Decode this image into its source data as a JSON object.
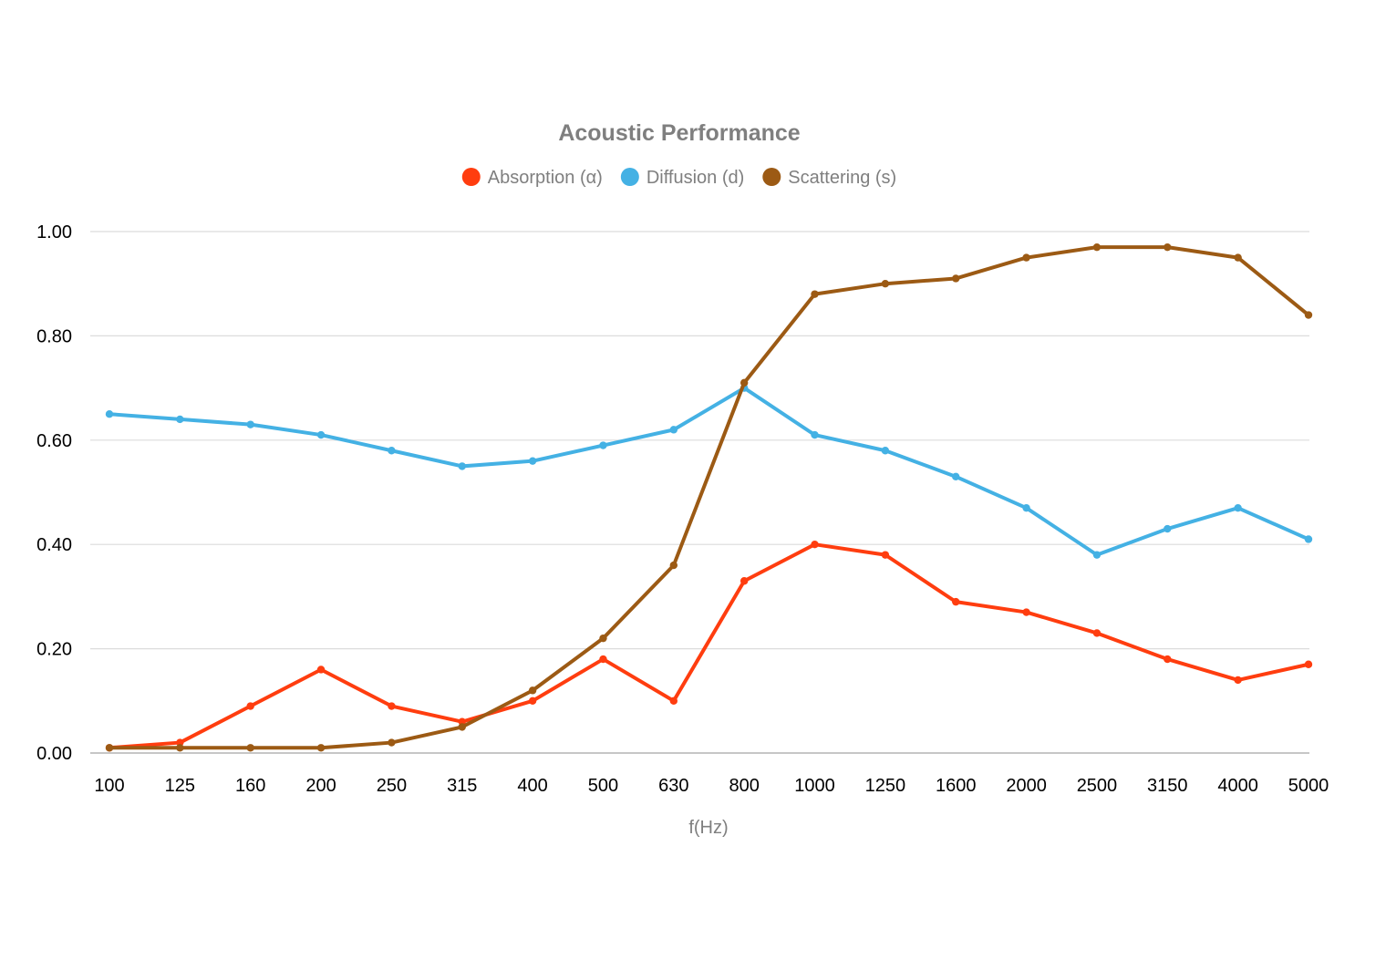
{
  "chart_data": {
    "type": "line",
    "title": "Acoustic Performance",
    "xlabel": "f(Hz)",
    "ylabel": "",
    "categories": [
      "100",
      "125",
      "160",
      "200",
      "250",
      "315",
      "400",
      "500",
      "630",
      "800",
      "1000",
      "1250",
      "1600",
      "2000",
      "2500",
      "3150",
      "4000",
      "5000"
    ],
    "ylim": [
      0,
      1
    ],
    "yticks": [
      "0.00",
      "0.20",
      "0.40",
      "0.60",
      "0.80",
      "1.00"
    ],
    "ytick_values": [
      0,
      0.2,
      0.4,
      0.6,
      0.8,
      1.0
    ],
    "grid": true,
    "legend_position": "top-center",
    "series": [
      {
        "name": "Absorption (α)",
        "color": "#ff3d0f",
        "values": [
          0.01,
          0.02,
          0.09,
          0.16,
          0.09,
          0.06,
          0.1,
          0.18,
          0.1,
          0.33,
          0.4,
          0.38,
          0.29,
          0.27,
          0.23,
          0.18,
          0.14,
          0.17
        ]
      },
      {
        "name": "Diffusion (d)",
        "color": "#44b1e4",
        "values": [
          0.65,
          0.64,
          0.63,
          0.61,
          0.58,
          0.55,
          0.56,
          0.59,
          0.62,
          0.7,
          0.61,
          0.58,
          0.53,
          0.47,
          0.38,
          0.43,
          0.47,
          0.41
        ]
      },
      {
        "name": "Scattering (s)",
        "color": "#9c5a14",
        "values": [
          0.01,
          0.01,
          0.01,
          0.01,
          0.02,
          0.05,
          0.12,
          0.22,
          0.36,
          0.71,
          0.88,
          0.9,
          0.91,
          0.95,
          0.97,
          0.97,
          0.95,
          0.84
        ]
      }
    ]
  }
}
